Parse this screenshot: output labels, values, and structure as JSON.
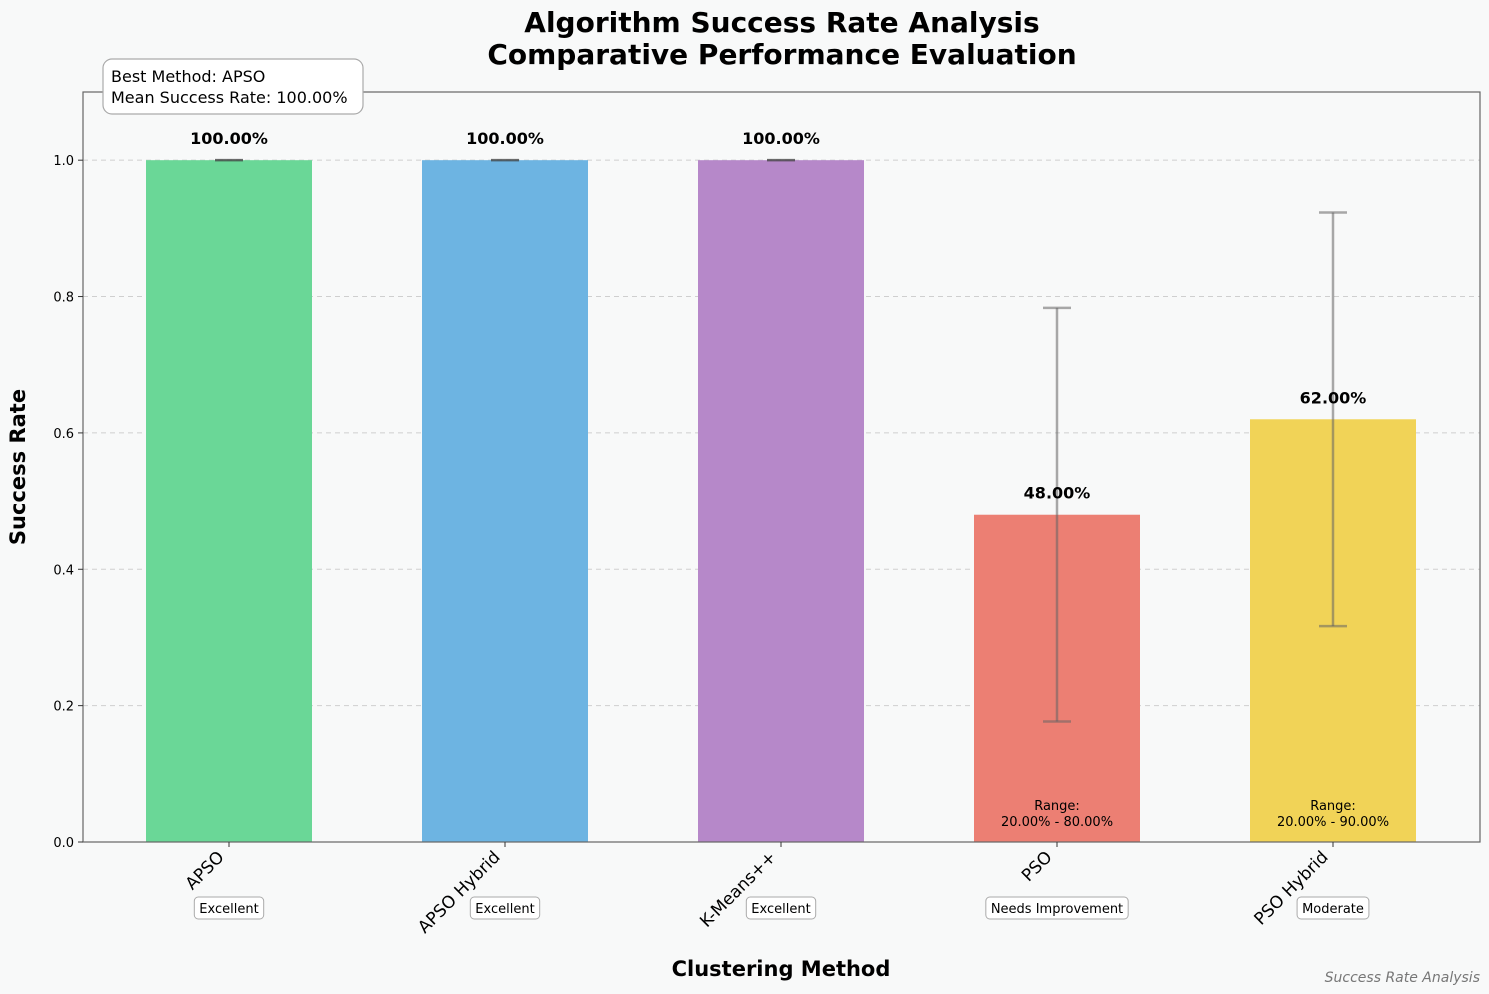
{
  "chart_data": {
    "type": "bar",
    "title": "Algorithm Success Rate Analysis",
    "subtitle": "Comparative Performance Evaluation",
    "xlabel": "Clustering Method",
    "ylabel": "Success Rate",
    "ylim": [
      0,
      1.1
    ],
    "yticks": [
      0.0,
      0.2,
      0.4,
      0.6,
      0.8,
      1.0
    ],
    "ytick_labels": [
      "0.0",
      "0.2",
      "0.4",
      "0.6",
      "0.8",
      "1.0"
    ],
    "grid": "horizontal dashed",
    "categories": [
      "APSO",
      "APSO Hybrid",
      "K-Means++",
      "PSO",
      "PSO Hybrid"
    ],
    "values": [
      1.0,
      1.0,
      1.0,
      0.48,
      0.62
    ],
    "error": [
      0.0,
      0.0,
      0.0,
      0.3033,
      0.3033
    ],
    "value_labels": [
      "100.00%",
      "100.00%",
      "100.00%",
      "48.00%",
      "62.00%"
    ],
    "ratings": [
      "Excellent",
      "Excellent",
      "Excellent",
      "Needs Improvement",
      "Moderate"
    ],
    "range_labels": [
      null,
      null,
      null,
      [
        "Range:",
        "20.00% - 80.00%"
      ],
      [
        "Range:",
        "20.00% - 90.00%"
      ]
    ],
    "colors": [
      "#6ad797",
      "#6db4e2",
      "#b688c9",
      "#ec7f73",
      "#f1d357"
    ],
    "annotation": {
      "best_method": "Best Method: APSO",
      "mean_rate": "Mean Success Rate: 100.00%"
    },
    "footer": "Success Rate Analysis"
  }
}
